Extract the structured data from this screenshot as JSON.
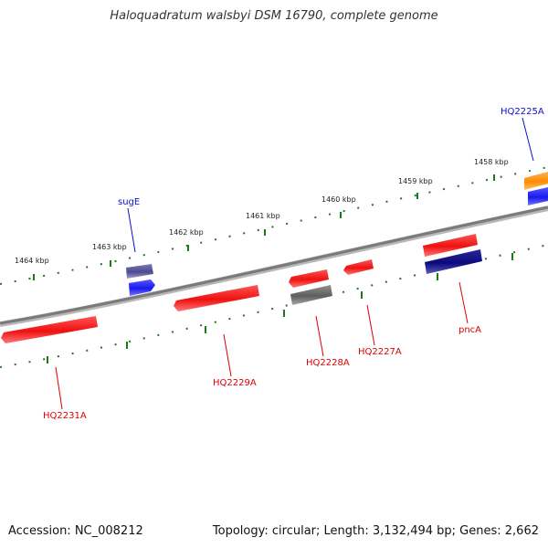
{
  "title": "Haloquadratum walsbyi DSM 16790, complete genome",
  "footer": {
    "accession": "Accession: NC_008212",
    "stats": "Topology: circular; Length: 3,132,494 bp; Genes: 2,662"
  },
  "ticks": [
    "1458 kbp",
    "1459 kbp",
    "1460 kbp",
    "1461 kbp",
    "1462 kbp",
    "1463 kbp",
    "1464 kbp"
  ],
  "colors": {
    "backbone": "#888888",
    "tick_dots": "#1a7a1a",
    "forward_label": "#1010cc",
    "reverse_label": "#dd0000",
    "red_gene": "#ee1111",
    "blue_gene": "#1a1aee",
    "navy_gene": "#0a0a7a",
    "slate_gene": "#4a4a8e",
    "gray_gene": "#6a6a6a",
    "orange_gene": "#ff8c00"
  },
  "genes": [
    {
      "id": "HQ2225A",
      "label": "HQ2225A",
      "strand": "forward",
      "color": "#1010cc"
    },
    {
      "id": "sugE",
      "label": "sugE",
      "strand": "forward",
      "color": "#1010cc"
    },
    {
      "id": "HQ2231A",
      "label": "HQ2231A",
      "strand": "reverse",
      "color": "#dd0000"
    },
    {
      "id": "HQ2229A",
      "label": "HQ2229A",
      "strand": "reverse",
      "color": "#dd0000"
    },
    {
      "id": "HQ2228A",
      "label": "HQ2228A",
      "strand": "reverse",
      "color": "#dd0000"
    },
    {
      "id": "HQ2227A",
      "label": "HQ2227A",
      "strand": "reverse",
      "color": "#dd0000"
    },
    {
      "id": "pncA",
      "label": "pncA",
      "strand": "reverse",
      "color": "#dd0000"
    }
  ]
}
